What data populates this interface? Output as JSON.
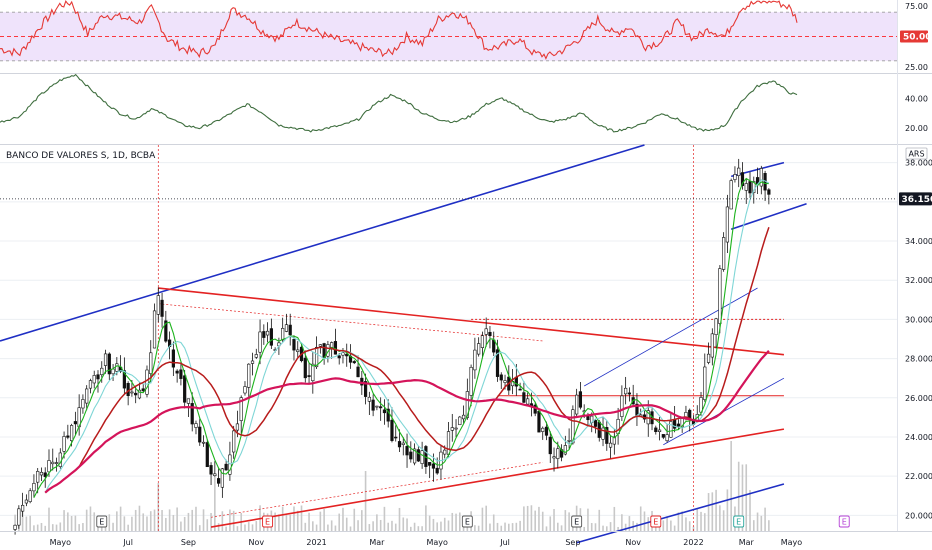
{
  "symbol_label": "BANCO DE VALORES S, 1D, BCBA",
  "currency_badge": "ARS",
  "colors": {
    "rsi_line": "#e53935",
    "rsi_band": "#efe3fb",
    "rsi_mid": "#ff0000",
    "osc_line": "#3f6e3f",
    "trend_blue": "#1f2fc4",
    "trend_red": "#e32222",
    "ma_green": "#1db31d",
    "ma_teal": "#7fd6d6",
    "ma_darkred": "#b81c1c",
    "ma_pink": "#d4145a",
    "candle": "#111111",
    "volume": "#c8c8c8",
    "grid": "#eceff3",
    "price_tag_bg": "#131722",
    "rsi_tag_bg": "#e53935"
  },
  "chart_data": [
    {
      "type": "line",
      "name": "RSI panel",
      "yticks": [
        75,
        25
      ],
      "highlight_tick": 50,
      "highlight_tick_label": "50.00",
      "ylim": [
        20,
        80
      ],
      "band": [
        30,
        70
      ],
      "x_index_range": [
        0,
        200
      ],
      "anchor_values": [
        [
          0,
          40
        ],
        [
          5,
          36
        ],
        [
          10,
          58
        ],
        [
          15,
          76
        ],
        [
          18,
          78
        ],
        [
          22,
          52
        ],
        [
          26,
          68
        ],
        [
          30,
          66
        ],
        [
          35,
          62
        ],
        [
          38,
          73
        ],
        [
          42,
          48
        ],
        [
          46,
          40
        ],
        [
          50,
          36
        ],
        [
          54,
          42
        ],
        [
          58,
          72
        ],
        [
          62,
          67
        ],
        [
          66,
          54
        ],
        [
          70,
          48
        ],
        [
          74,
          62
        ],
        [
          78,
          56
        ],
        [
          82,
          50
        ],
        [
          86,
          46
        ],
        [
          90,
          42
        ],
        [
          94,
          38
        ],
        [
          98,
          36
        ],
        [
          102,
          50
        ],
        [
          106,
          44
        ],
        [
          110,
          64
        ],
        [
          114,
          70
        ],
        [
          118,
          62
        ],
        [
          122,
          40
        ],
        [
          126,
          42
        ],
        [
          130,
          48
        ],
        [
          134,
          36
        ],
        [
          138,
          34
        ],
        [
          142,
          40
        ],
        [
          146,
          50
        ],
        [
          150,
          64
        ],
        [
          154,
          52
        ],
        [
          158,
          58
        ],
        [
          162,
          42
        ],
        [
          166,
          46
        ],
        [
          170,
          62
        ],
        [
          174,
          48
        ],
        [
          178,
          56
        ],
        [
          182,
          50
        ],
        [
          186,
          74
        ],
        [
          190,
          78
        ],
        [
          194,
          80
        ],
        [
          198,
          74
        ],
        [
          200,
          64
        ]
      ]
    },
    {
      "type": "line",
      "name": "Oscillator panel",
      "yticks": [
        40,
        20
      ],
      "ylim": [
        10,
        55
      ],
      "x_index_range": [
        0,
        200
      ],
      "anchor_values": [
        [
          0,
          24
        ],
        [
          5,
          28
        ],
        [
          10,
          42
        ],
        [
          15,
          52
        ],
        [
          19,
          56
        ],
        [
          22,
          48
        ],
        [
          26,
          38
        ],
        [
          30,
          30
        ],
        [
          34,
          26
        ],
        [
          38,
          33
        ],
        [
          42,
          28
        ],
        [
          46,
          22
        ],
        [
          50,
          20
        ],
        [
          54,
          24
        ],
        [
          58,
          30
        ],
        [
          62,
          36
        ],
        [
          66,
          30
        ],
        [
          70,
          22
        ],
        [
          74,
          20
        ],
        [
          78,
          18
        ],
        [
          82,
          20
        ],
        [
          86,
          22
        ],
        [
          90,
          26
        ],
        [
          94,
          36
        ],
        [
          98,
          42
        ],
        [
          102,
          38
        ],
        [
          106,
          30
        ],
        [
          110,
          26
        ],
        [
          114,
          24
        ],
        [
          118,
          28
        ],
        [
          122,
          36
        ],
        [
          126,
          40
        ],
        [
          130,
          34
        ],
        [
          134,
          28
        ],
        [
          138,
          24
        ],
        [
          142,
          26
        ],
        [
          146,
          30
        ],
        [
          150,
          22
        ],
        [
          154,
          18
        ],
        [
          158,
          20
        ],
        [
          162,
          24
        ],
        [
          166,
          30
        ],
        [
          170,
          26
        ],
        [
          174,
          20
        ],
        [
          178,
          18
        ],
        [
          182,
          22
        ],
        [
          186,
          38
        ],
        [
          190,
          48
        ],
        [
          194,
          52
        ],
        [
          198,
          44
        ],
        [
          200,
          42
        ]
      ]
    },
    {
      "type": "candlestick",
      "name": "Price panel",
      "ylim": [
        19.2,
        38.9
      ],
      "yticks": [
        38,
        36,
        34,
        32,
        30,
        28,
        26,
        24,
        22,
        20
      ],
      "ytick_labels": [
        "38.000",
        "34.000",
        "32.000",
        "30.000",
        "28.000",
        "26.000",
        "24.000",
        "22.000",
        "20.000"
      ],
      "last_price": 36.15,
      "last_price_label": "36.150",
      "x_labels": [
        "Mayo",
        "Jul",
        "Sep",
        "Nov",
        "2021",
        "Mar",
        "Mayo",
        "Jul",
        "Sep",
        "Nov",
        "2022",
        "Mar",
        "Mayo"
      ],
      "x_label_index": [
        12,
        30,
        46,
        64,
        80,
        96,
        112,
        130,
        148,
        164,
        180,
        194,
        206
      ],
      "x_index_range": [
        -4,
        234
      ],
      "price_anchors": [
        [
          0,
          19.6
        ],
        [
          4,
          21.5
        ],
        [
          8,
          22.3
        ],
        [
          12,
          23.4
        ],
        [
          16,
          24.6
        ],
        [
          20,
          26.6
        ],
        [
          24,
          27.8
        ],
        [
          28,
          27.2
        ],
        [
          32,
          25.9
        ],
        [
          35,
          27.0
        ],
        [
          38,
          31.6
        ],
        [
          40,
          29.2
        ],
        [
          43,
          27.4
        ],
        [
          46,
          25.6
        ],
        [
          49,
          24.0
        ],
        [
          52,
          21.9
        ],
        [
          54,
          21.6
        ],
        [
          57,
          23.0
        ],
        [
          60,
          25.6
        ],
        [
          63,
          28.3
        ],
        [
          66,
          29.3
        ],
        [
          69,
          28.9
        ],
        [
          72,
          29.5
        ],
        [
          75,
          28.1
        ],
        [
          78,
          26.8
        ],
        [
          80,
          28.2
        ],
        [
          84,
          28.6
        ],
        [
          88,
          28.1
        ],
        [
          91,
          27.1
        ],
        [
          94,
          26.1
        ],
        [
          97,
          25.2
        ],
        [
          100,
          24.2
        ],
        [
          103,
          23.6
        ],
        [
          106,
          23.1
        ],
        [
          109,
          22.8
        ],
        [
          112,
          22.6
        ],
        [
          115,
          24.0
        ],
        [
          118,
          24.6
        ],
        [
          121,
          27.2
        ],
        [
          124,
          29.6
        ],
        [
          126,
          28.8
        ],
        [
          128,
          27.4
        ],
        [
          131,
          26.6
        ],
        [
          134,
          26.3
        ],
        [
          137,
          25.4
        ],
        [
          140,
          24.2
        ],
        [
          143,
          23.1
        ],
        [
          146,
          23.2
        ],
        [
          149,
          25.9
        ],
        [
          152,
          25.0
        ],
        [
          155,
          24.3
        ],
        [
          158,
          23.7
        ],
        [
          160,
          25.2
        ],
        [
          162,
          26.4
        ],
        [
          164,
          25.6
        ],
        [
          167,
          25.2
        ],
        [
          170,
          24.7
        ],
        [
          173,
          24.1
        ],
        [
          176,
          24.9
        ],
        [
          178,
          25.6
        ],
        [
          180,
          24.8
        ],
        [
          182,
          26.3
        ],
        [
          184,
          28.2
        ],
        [
          186,
          30.3
        ],
        [
          188,
          34.1
        ],
        [
          190,
          36.9
        ],
        [
          192,
          37.3
        ],
        [
          194,
          36.8
        ],
        [
          196,
          36.6
        ],
        [
          198,
          37.3
        ],
        [
          200,
          36.2
        ]
      ],
      "moving_averages": [
        {
          "name": "",
          "color_key": "ma_green",
          "window": 5
        },
        {
          "name": "",
          "color_key": "ma_teal",
          "window": 9
        },
        {
          "name": "",
          "color_key": "ma_darkred",
          "window": 18
        },
        {
          "name": "",
          "color_key": "ma_pink",
          "window": 50
        }
      ],
      "trendlines": [
        {
          "color_key": "trend_blue",
          "width": 1.6,
          "points": [
            [
              -4,
              28.9
            ],
            [
              167,
              38.9
            ]
          ]
        },
        {
          "color_key": "trend_red",
          "width": 1.6,
          "points": [
            [
              38,
              31.6
            ],
            [
              204,
              28.2
            ]
          ]
        },
        {
          "color_key": "trend_red",
          "width": 1.6,
          "points": [
            [
              52,
              19.4
            ],
            [
              204,
              24.4
            ]
          ]
        },
        {
          "color_key": "trend_red",
          "width": 1.0,
          "points": [
            [
              128,
              26.1
            ],
            [
              204,
              26.1
            ]
          ]
        },
        {
          "color_key": "trend_red",
          "width": 1.0,
          "points": [
            [
              121,
              30.0
            ],
            [
              204,
              30.0
            ]
          ],
          "dashed": true
        },
        {
          "color_key": "trend_red",
          "width": 0.7,
          "points": [
            [
              38,
              30.8
            ],
            [
              140,
              28.9
            ]
          ],
          "dashed": true
        },
        {
          "color_key": "trend_red",
          "width": 0.7,
          "points": [
            [
              52,
              19.9
            ],
            [
              140,
              22.7
            ]
          ],
          "dashed": true
        },
        {
          "color_key": "trend_blue",
          "width": 0.8,
          "points": [
            [
              151,
              26.6
            ],
            [
              197,
              31.6
            ]
          ]
        },
        {
          "color_key": "trend_blue",
          "width": 0.8,
          "points": [
            [
              172,
              23.6
            ],
            [
              204,
              27.0
            ]
          ]
        },
        {
          "color_key": "trend_blue",
          "width": 1.6,
          "points": [
            [
              190,
              37.3
            ],
            [
              204,
              38.0
            ]
          ]
        },
        {
          "color_key": "trend_blue",
          "width": 1.6,
          "points": [
            [
              190,
              34.6
            ],
            [
              210,
              35.9
            ]
          ]
        },
        {
          "color_key": "trend_blue",
          "width": 1.6,
          "points": [
            [
              149,
              18.6
            ],
            [
              204,
              21.6
            ]
          ]
        }
      ],
      "vertical_markers": [
        38,
        180
      ],
      "event_markers": [
        {
          "x": 23,
          "label": "E",
          "kind": "past"
        },
        {
          "x": 67,
          "label": "E",
          "kind": "red"
        },
        {
          "x": 120,
          "label": "E",
          "kind": "past"
        },
        {
          "x": 149,
          "label": "E",
          "kind": "past"
        },
        {
          "x": 170,
          "label": "E",
          "kind": "red"
        },
        {
          "x": 192,
          "label": "E",
          "kind": "teal"
        },
        {
          "x": 220,
          "label": "E",
          "kind": "purple"
        }
      ]
    }
  ]
}
